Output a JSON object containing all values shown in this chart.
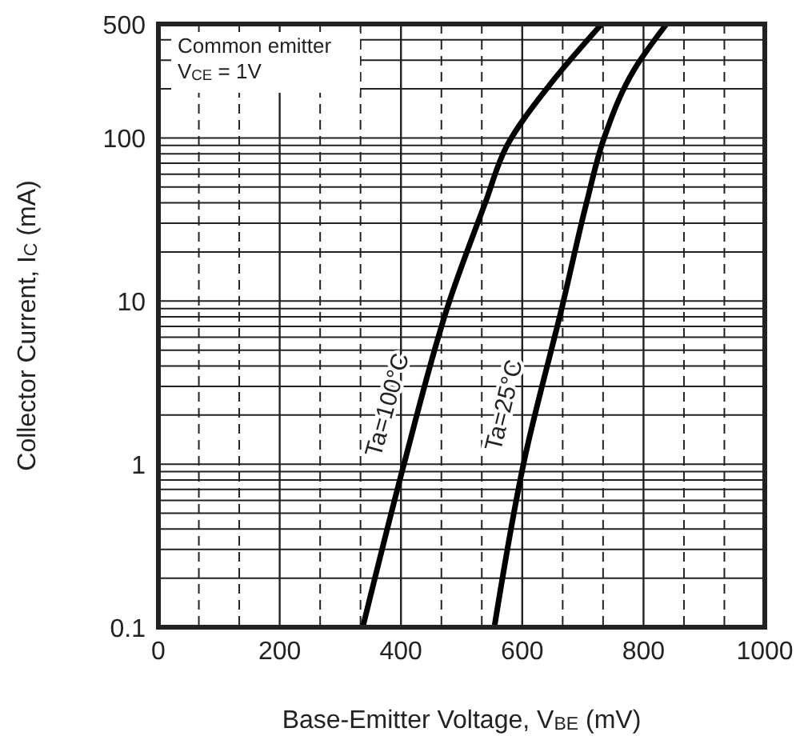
{
  "chart_data": {
    "type": "line",
    "xlabel": "Base-Emitter Voltage, V$_{BE}$ (mV)",
    "ylabel": "Collector Current, I$_{C}$ (mA)",
    "xlim": [
      0,
      1000
    ],
    "xticks": [
      0,
      {
        "value": 66.7,
        "label": null
      },
      {
        "value": 133.3,
        "label": null
      },
      200,
      {
        "value": 266.7,
        "label": null
      },
      {
        "value": 333.3,
        "label": null
      },
      400,
      {
        "value": 466.7,
        "label": null
      },
      {
        "value": 533.3,
        "label": null
      },
      600,
      {
        "value": 666.7,
        "label": null
      },
      {
        "value": 733.3,
        "label": null
      },
      800,
      {
        "value": 866.7,
        "label": null
      },
      {
        "value": 933.3,
        "label": null
      },
      1000
    ],
    "ylim": [
      0.1,
      500
    ],
    "yticks": [
      0.1,
      {
        "value": 0.2,
        "label": null
      },
      {
        "value": 0.3,
        "label": null
      },
      {
        "value": 0.4,
        "label": null
      },
      {
        "value": 0.5,
        "label": null
      },
      {
        "value": 0.6,
        "label": null
      },
      {
        "value": 0.7,
        "label": null
      },
      {
        "value": 0.8,
        "label": null
      },
      {
        "value": 0.9,
        "label": null
      },
      1,
      {
        "value": 2,
        "label": null
      },
      {
        "value": 3,
        "label": null
      },
      {
        "value": 4,
        "label": null
      },
      {
        "value": 5,
        "label": null
      },
      {
        "value": 6,
        "label": null
      },
      {
        "value": 7,
        "label": null
      },
      {
        "value": 8,
        "label": null
      },
      {
        "value": 9,
        "label": null
      },
      10,
      {
        "value": 20,
        "label": null
      },
      {
        "value": 30,
        "label": null
      },
      {
        "value": 40,
        "label": null
      },
      {
        "value": 50,
        "label": null
      },
      {
        "value": 60,
        "label": null
      },
      {
        "value": 70,
        "label": null
      },
      {
        "value": 80,
        "label": null
      },
      {
        "value": 90,
        "label": null
      },
      100,
      {
        "value": 200,
        "label": null
      },
      {
        "value": 300,
        "label": null
      },
      {
        "value": 400,
        "label": null
      },
      500
    ],
    "log": "y",
    "grid": true,
    "series": [
      {
        "name": "Ta=100°C",
        "color": "#000000",
        "x": [
          337,
          405,
          480,
          539,
          575,
          645,
          731
        ],
        "values": [
          0.1,
          1,
          10,
          40,
          90,
          211,
          500
        ]
      },
      {
        "name": "Ta=25°C",
        "color": "#000000",
        "x": [
          554,
          602,
          668,
          706,
          735,
          785,
          838
        ],
        "values": [
          0.1,
          1,
          10,
          40,
          100,
          264,
          500
        ]
      }
    ],
    "annotations": [
      "Common emitter",
      "V$_{CE}$ = 1V"
    ]
  }
}
